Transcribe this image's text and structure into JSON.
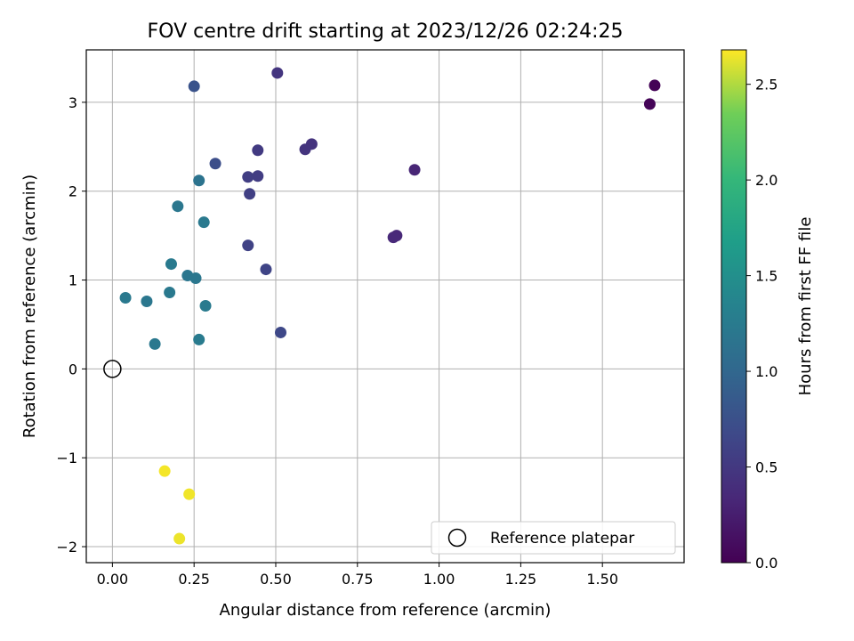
{
  "chart_data": {
    "type": "scatter",
    "title": "FOV centre drift starting at 2023/12/26 02:24:25",
    "xlabel": "Angular distance from reference (arcmin)",
    "ylabel": "Rotation from reference (arcmin)",
    "xlim": [
      -0.08,
      1.75
    ],
    "ylim": [
      -2.18,
      3.59
    ],
    "xticks": [
      0.0,
      0.25,
      0.5,
      0.75,
      1.0,
      1.25,
      1.5
    ],
    "xtick_labels": [
      "0.00",
      "0.25",
      "0.50",
      "0.75",
      "1.00",
      "1.25",
      "1.50"
    ],
    "yticks": [
      -2,
      -1,
      0,
      1,
      2,
      3
    ],
    "ytick_labels": [
      "−2",
      "−1",
      "0",
      "1",
      "2",
      "3"
    ],
    "grid": true,
    "colormap": "viridis",
    "colorbar": {
      "label": "Hours from first FF file",
      "range": [
        0.0,
        2.68
      ],
      "ticks": [
        0.0,
        0.5,
        1.0,
        1.5,
        2.0,
        2.5
      ],
      "tick_labels": [
        "0.0",
        "0.5",
        "1.0",
        "1.5",
        "2.0",
        "2.5"
      ]
    },
    "legend": {
      "position": "lower-right",
      "entries": [
        "Reference platepar"
      ]
    },
    "reference_point": {
      "x": 0.0,
      "y": 0.0,
      "marker": "hollow-circle"
    },
    "points": [
      {
        "x": 1.66,
        "y": 3.19,
        "c": 0.02
      },
      {
        "x": 1.645,
        "y": 2.98,
        "c": 0.03
      },
      {
        "x": 0.925,
        "y": 2.24,
        "c": 0.32
      },
      {
        "x": 0.87,
        "y": 1.5,
        "c": 0.34
      },
      {
        "x": 0.86,
        "y": 1.48,
        "c": 0.35
      },
      {
        "x": 0.61,
        "y": 2.53,
        "c": 0.45
      },
      {
        "x": 0.59,
        "y": 2.47,
        "c": 0.46
      },
      {
        "x": 0.505,
        "y": 3.33,
        "c": 0.47
      },
      {
        "x": 0.445,
        "y": 2.46,
        "c": 0.52
      },
      {
        "x": 0.445,
        "y": 2.17,
        "c": 0.55
      },
      {
        "x": 0.415,
        "y": 2.16,
        "c": 0.56
      },
      {
        "x": 0.42,
        "y": 1.97,
        "c": 0.58
      },
      {
        "x": 0.415,
        "y": 1.39,
        "c": 0.6
      },
      {
        "x": 0.47,
        "y": 1.12,
        "c": 0.62
      },
      {
        "x": 0.515,
        "y": 0.41,
        "c": 0.66
      },
      {
        "x": 0.315,
        "y": 2.31,
        "c": 0.72
      },
      {
        "x": 0.25,
        "y": 3.18,
        "c": 0.78
      },
      {
        "x": 0.265,
        "y": 2.12,
        "c": 1.15
      },
      {
        "x": 0.2,
        "y": 1.83,
        "c": 1.2
      },
      {
        "x": 0.28,
        "y": 1.65,
        "c": 1.22
      },
      {
        "x": 0.18,
        "y": 1.18,
        "c": 1.24
      },
      {
        "x": 0.23,
        "y": 1.05,
        "c": 1.18
      },
      {
        "x": 0.255,
        "y": 1.02,
        "c": 1.2
      },
      {
        "x": 0.175,
        "y": 0.86,
        "c": 1.22
      },
      {
        "x": 0.04,
        "y": 0.8,
        "c": 1.23
      },
      {
        "x": 0.105,
        "y": 0.76,
        "c": 1.2
      },
      {
        "x": 0.285,
        "y": 0.71,
        "c": 1.24
      },
      {
        "x": 0.13,
        "y": 0.28,
        "c": 1.21
      },
      {
        "x": 0.265,
        "y": 0.33,
        "c": 1.25
      },
      {
        "x": 0.16,
        "y": -1.15,
        "c": 2.66
      },
      {
        "x": 0.235,
        "y": -1.41,
        "c": 2.65
      },
      {
        "x": 0.205,
        "y": -1.91,
        "c": 2.64
      }
    ]
  }
}
